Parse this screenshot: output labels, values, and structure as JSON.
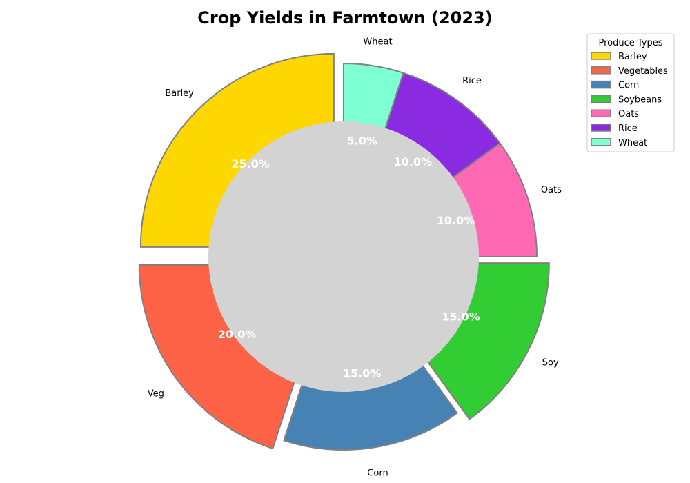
{
  "chart_data": {
    "type": "pie",
    "title": "Crop Yields in Farmtown (2023)",
    "categories": [
      "Barley",
      "Vegetables",
      "Corn",
      "Soybeans",
      "Oats",
      "Rice",
      "Wheat"
    ],
    "slice_labels": [
      "Barley",
      "Veg",
      "Corn",
      "Soy",
      "Oats",
      "Rice",
      "Wheat"
    ],
    "values": [
      25.0,
      20.0,
      15.0,
      15.0,
      10.0,
      10.0,
      5.0
    ],
    "value_labels": [
      "25.0%",
      "20.0%",
      "15.0%",
      "15.0%",
      "10.0%",
      "10.0%",
      "5.0%"
    ],
    "colors": [
      "#FFD700",
      "#FF6347",
      "#4682B4",
      "#32CD32",
      "#FF69B4",
      "#8A2BE2",
      "#7FFFD4"
    ],
    "exploded": [
      true,
      true,
      false,
      true,
      false,
      false,
      false
    ],
    "donut": true,
    "center_color": "#D3D3D3",
    "edge_color": "#808080",
    "legend": {
      "title": "Produce Types",
      "entries": [
        "Barley",
        "Vegetables",
        "Corn",
        "Soybeans",
        "Oats",
        "Rice",
        "Wheat"
      ],
      "placement": "top-right"
    }
  }
}
